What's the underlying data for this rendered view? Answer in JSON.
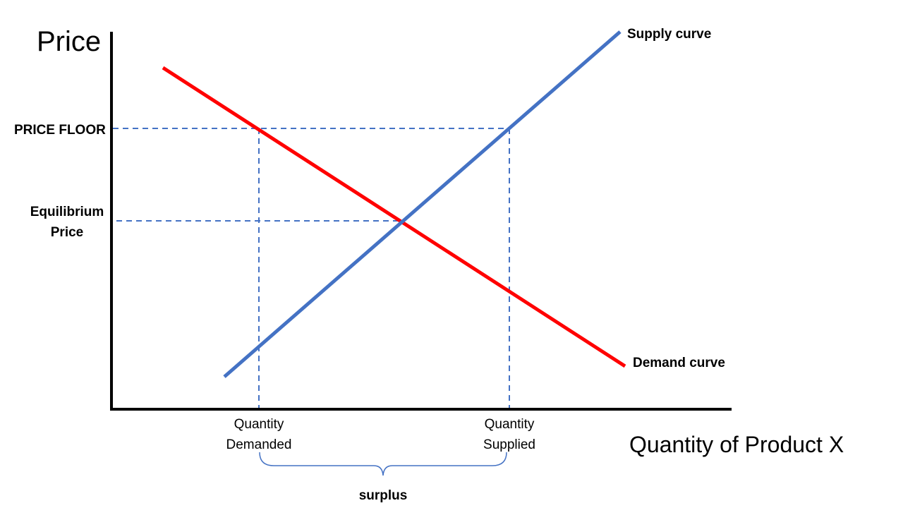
{
  "title_y_axis": "Price",
  "title_x_axis": "Quantity of Product X",
  "labels": {
    "price_floor": "PRICE FLOOR",
    "equilibrium_line1": "Equilibrium",
    "equilibrium_line2": "Price",
    "supply": "Supply curve",
    "demand": "Demand curve",
    "qd_line1": "Quantity",
    "qd_line2": "Demanded",
    "qs_line1": "Quantity",
    "qs_line2": "Supplied",
    "surplus": "surplus"
  },
  "colors": {
    "supply": "#4472C4",
    "demand": "#FF0000",
    "axes": "#000000",
    "guides": "#4472C4",
    "brace": "#4472C4"
  }
}
